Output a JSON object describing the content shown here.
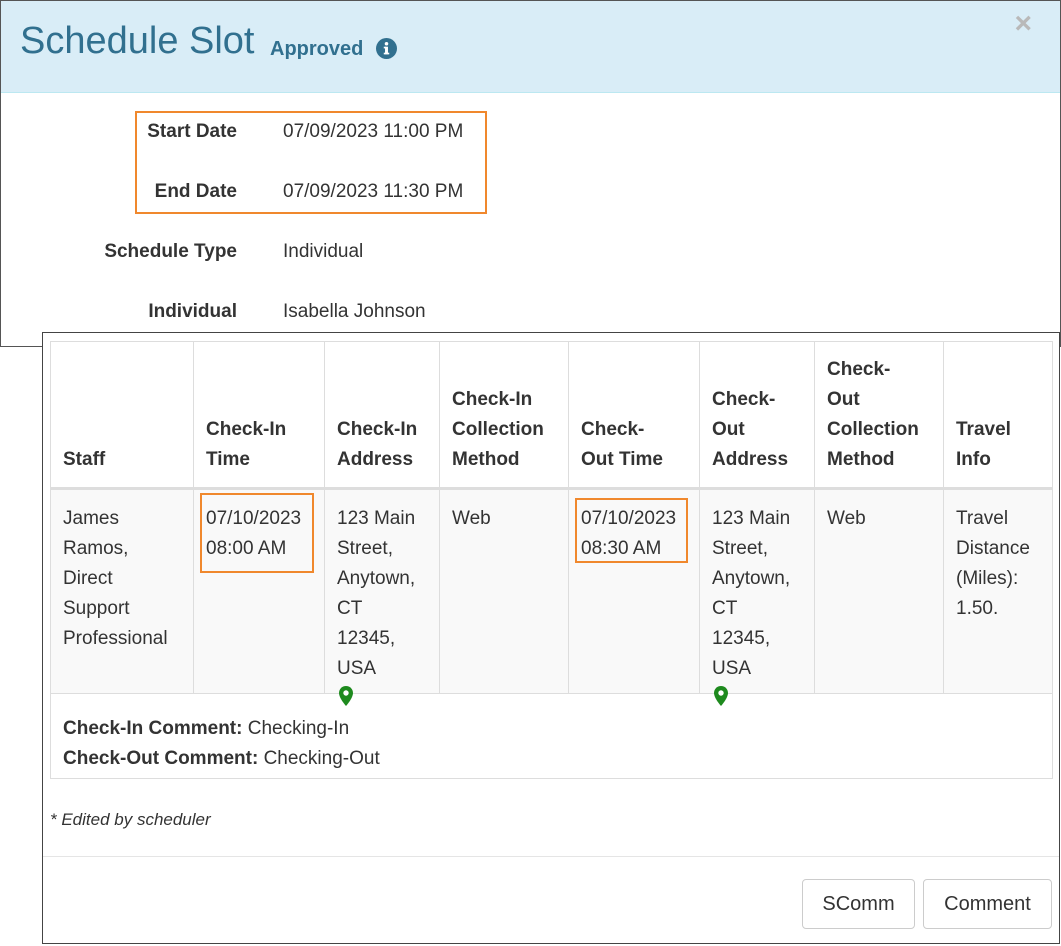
{
  "modal": {
    "title": "Schedule Slot",
    "status": "Approved",
    "close_label": "×"
  },
  "details": {
    "start_date_label": "Start Date",
    "start_date_value": "07/09/2023 11:00 PM",
    "end_date_label": "End Date",
    "end_date_value": "07/09/2023 11:30 PM",
    "schedule_type_label": "Schedule Type",
    "schedule_type_value": "Individual",
    "individual_label": "Individual",
    "individual_value": "Isabella Johnson"
  },
  "table": {
    "headers": [
      [
        "Staff"
      ],
      [
        "Check-In",
        "Time"
      ],
      [
        "Check-In",
        "Address"
      ],
      [
        "Check-In",
        "Collection",
        "Method"
      ],
      [
        "Check-",
        "Out Time"
      ],
      [
        "Check-",
        "Out",
        "Address"
      ],
      [
        "Check-",
        "Out",
        "Collection",
        "Method"
      ],
      [
        "Travel",
        "Info"
      ]
    ],
    "row": {
      "staff": [
        "James",
        "Ramos,",
        "Direct",
        "Support",
        "Professional"
      ],
      "check_in_time": [
        "07/10/2023",
        "08:00 AM"
      ],
      "check_in_address": [
        "123 Main",
        "Street,",
        "Anytown,",
        "CT",
        "12345,",
        "USA"
      ],
      "check_in_method": [
        "Web"
      ],
      "check_out_time": [
        "07/10/2023",
        "08:30 AM"
      ],
      "check_out_address": [
        "123 Main",
        "Street,",
        "Anytown,",
        "CT",
        "12345,",
        "USA"
      ],
      "check_out_method": [
        "Web"
      ],
      "travel_info": [
        "Travel",
        "Distance",
        "(Miles):",
        "1.50."
      ]
    },
    "check_in_comment_label": "Check-In Comment:",
    "check_in_comment": "Checking-In",
    "check_out_comment_label": "Check-Out Comment:",
    "check_out_comment": "Checking-Out"
  },
  "footnote": "* Edited by scheduler",
  "buttons": {
    "scomm": "SComm",
    "comment": "Comment"
  },
  "icons": {
    "info": "info-circle-icon",
    "map_pin": "map-marker-icon"
  },
  "colors": {
    "header_bg": "#d9edf7",
    "header_text": "#31708f",
    "highlight": "#f0882d",
    "pin": "#1e8a1e"
  }
}
